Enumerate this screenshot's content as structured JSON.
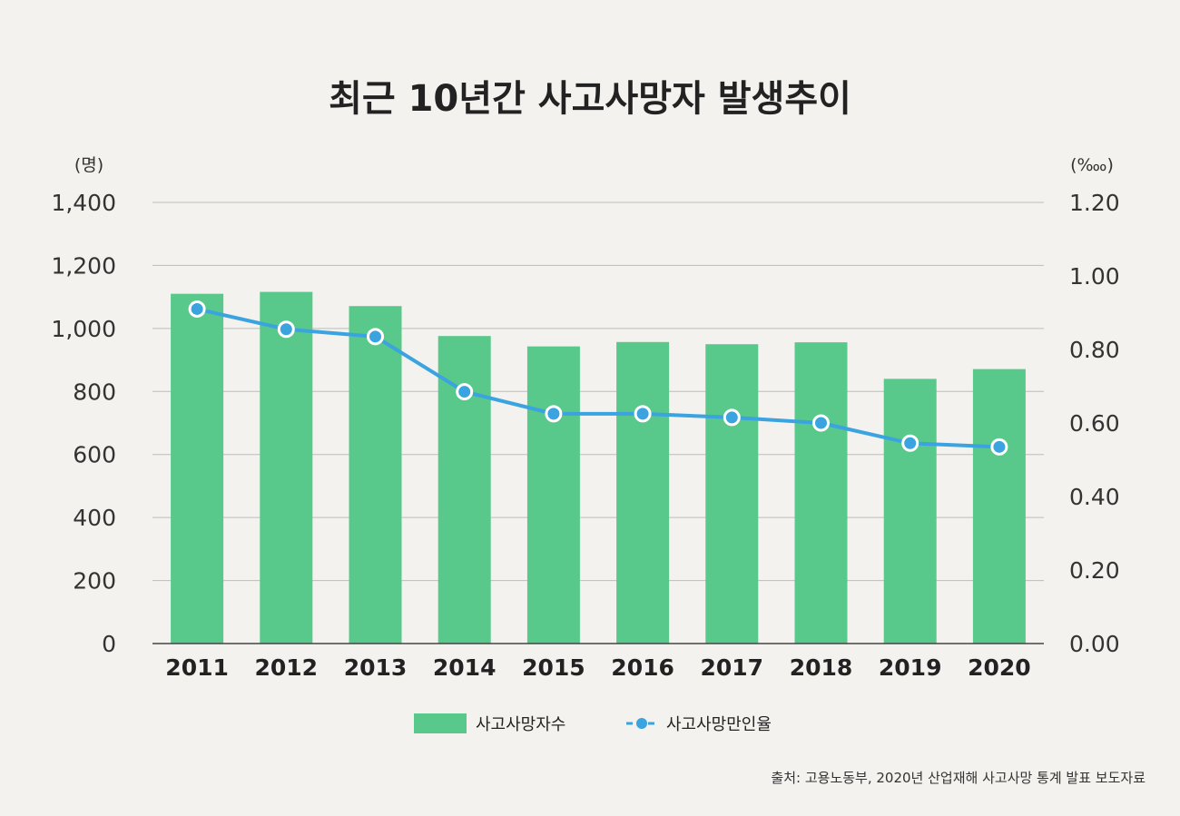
{
  "chart_data": {
    "type": "bar",
    "title": "최근 10년간 사고사망자 발생추이",
    "y_unit_left": "(명)",
    "y_unit_right": "(‱)",
    "categories": [
      "2011",
      "2012",
      "2013",
      "2014",
      "2015",
      "2016",
      "2017",
      "2018",
      "2019",
      "2020"
    ],
    "ylim_left": [
      0,
      1400
    ],
    "yticks_left": [
      "0",
      "200",
      "400",
      "600",
      "800",
      "1,000",
      "1,200",
      "1,400"
    ],
    "ylim_right": [
      0,
      1.2
    ],
    "yticks_right": [
      "0.00",
      "0.20",
      "0.40",
      "0.60",
      "0.80",
      "1.00",
      "1.20"
    ],
    "series": [
      {
        "name": "사고사망자수",
        "type": "bar",
        "axis": "left",
        "color": "#58c98a",
        "values": [
          1110,
          1116,
          1071,
          976,
          943,
          957,
          950,
          956,
          840,
          871
        ]
      },
      {
        "name": "사고사망만인율",
        "type": "line",
        "axis": "right",
        "color": "#3aa3e0",
        "values": [
          0.91,
          0.855,
          0.835,
          0.685,
          0.625,
          0.625,
          0.615,
          0.6,
          0.545,
          0.535
        ]
      }
    ],
    "legend": "bottom-center",
    "grid": true,
    "source": "출처: 고용노동부, 2020년 산업재해 사고사망 통계 발표 보도자료"
  }
}
